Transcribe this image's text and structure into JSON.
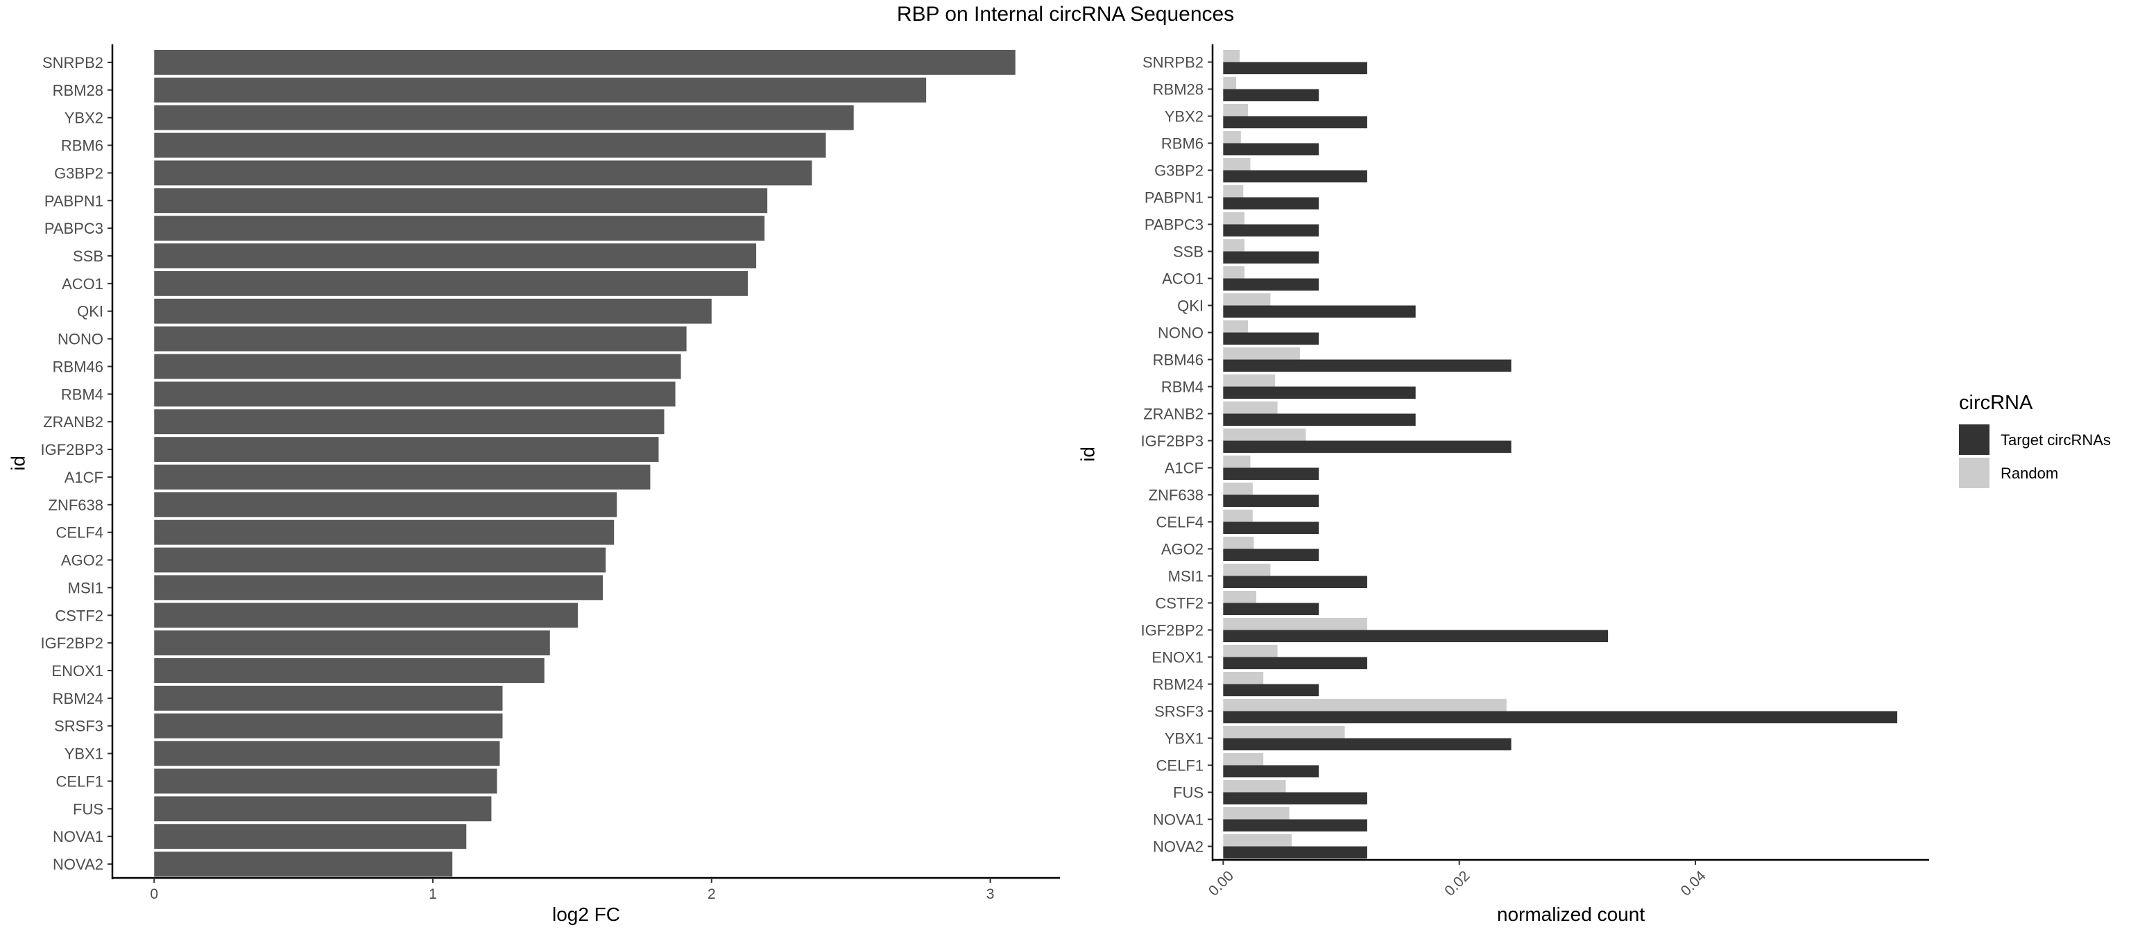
{
  "title": "RBP on Internal circRNA Sequences",
  "colors": {
    "bar": "#595959",
    "target": "#333333",
    "random": "#cccccc",
    "axis": "#000000"
  },
  "chart_data": [
    {
      "type": "bar",
      "orientation": "horizontal",
      "categories": [
        "SNRPB2",
        "RBM28",
        "YBX2",
        "RBM6",
        "G3BP2",
        "PABPN1",
        "PABPC3",
        "SSB",
        "ACO1",
        "QKI",
        "NONO",
        "RBM46",
        "RBM4",
        "ZRANB2",
        "IGF2BP3",
        "A1CF",
        "ZNF638",
        "CELF4",
        "AGO2",
        "MSI1",
        "CSTF2",
        "IGF2BP2",
        "ENOX1",
        "RBM24",
        "SRSF3",
        "YBX1",
        "CELF1",
        "FUS",
        "NOVA1",
        "NOVA2"
      ],
      "values": [
        3.09,
        2.77,
        2.51,
        2.41,
        2.36,
        2.2,
        2.19,
        2.16,
        2.13,
        2.0,
        1.91,
        1.89,
        1.87,
        1.83,
        1.81,
        1.78,
        1.66,
        1.65,
        1.62,
        1.61,
        1.52,
        1.42,
        1.4,
        1.25,
        1.25,
        1.24,
        1.23,
        1.21,
        1.12,
        1.07
      ],
      "xlabel": "log2 FC",
      "ylabel": "id",
      "xlim": [
        -0.15,
        3.25
      ],
      "xticks": [
        0,
        1,
        2,
        3
      ],
      "xtick_labels": [
        "0",
        "1",
        "2",
        "3"
      ],
      "grid": false
    },
    {
      "type": "bar",
      "orientation": "horizontal",
      "grouped": true,
      "categories": [
        "SNRPB2",
        "RBM28",
        "YBX2",
        "RBM6",
        "G3BP2",
        "PABPN1",
        "PABPC3",
        "SSB",
        "ACO1",
        "QKI",
        "NONO",
        "RBM46",
        "RBM4",
        "ZRANB2",
        "IGF2BP3",
        "A1CF",
        "ZNF638",
        "CELF4",
        "AGO2",
        "MSI1",
        "CSTF2",
        "IGF2BP2",
        "ENOX1",
        "RBM24",
        "SRSF3",
        "YBX1",
        "CELF1",
        "FUS",
        "NOVA1",
        "NOVA2"
      ],
      "series": [
        {
          "name": "Target circRNAs",
          "values": [
            0.0122,
            0.0081,
            0.0122,
            0.0081,
            0.0122,
            0.0081,
            0.0081,
            0.0081,
            0.0081,
            0.0163,
            0.0081,
            0.0244,
            0.0163,
            0.0163,
            0.0244,
            0.0081,
            0.0081,
            0.0081,
            0.0081,
            0.0122,
            0.0081,
            0.0326,
            0.0122,
            0.0081,
            0.0571,
            0.0244,
            0.0081,
            0.0122,
            0.0122,
            0.0122
          ]
        },
        {
          "name": "Random",
          "values": [
            0.0014,
            0.0011,
            0.0021,
            0.0015,
            0.0023,
            0.0017,
            0.0018,
            0.0018,
            0.0018,
            0.004,
            0.0021,
            0.0065,
            0.0044,
            0.0046,
            0.007,
            0.0023,
            0.0025,
            0.0025,
            0.0026,
            0.004,
            0.0028,
            0.0122,
            0.0046,
            0.0034,
            0.024,
            0.0103,
            0.0034,
            0.0053,
            0.0056,
            0.0058
          ]
        }
      ],
      "xlabel": "normalized count",
      "ylabel": "id",
      "xlim": [
        -0.0009,
        0.0598
      ],
      "xticks": [
        0,
        0.02,
        0.04
      ],
      "xtick_labels": [
        "0.00",
        "0.02",
        "0.04"
      ],
      "legend": {
        "title": "circRNA",
        "placement": "right"
      },
      "grid": false
    }
  ]
}
